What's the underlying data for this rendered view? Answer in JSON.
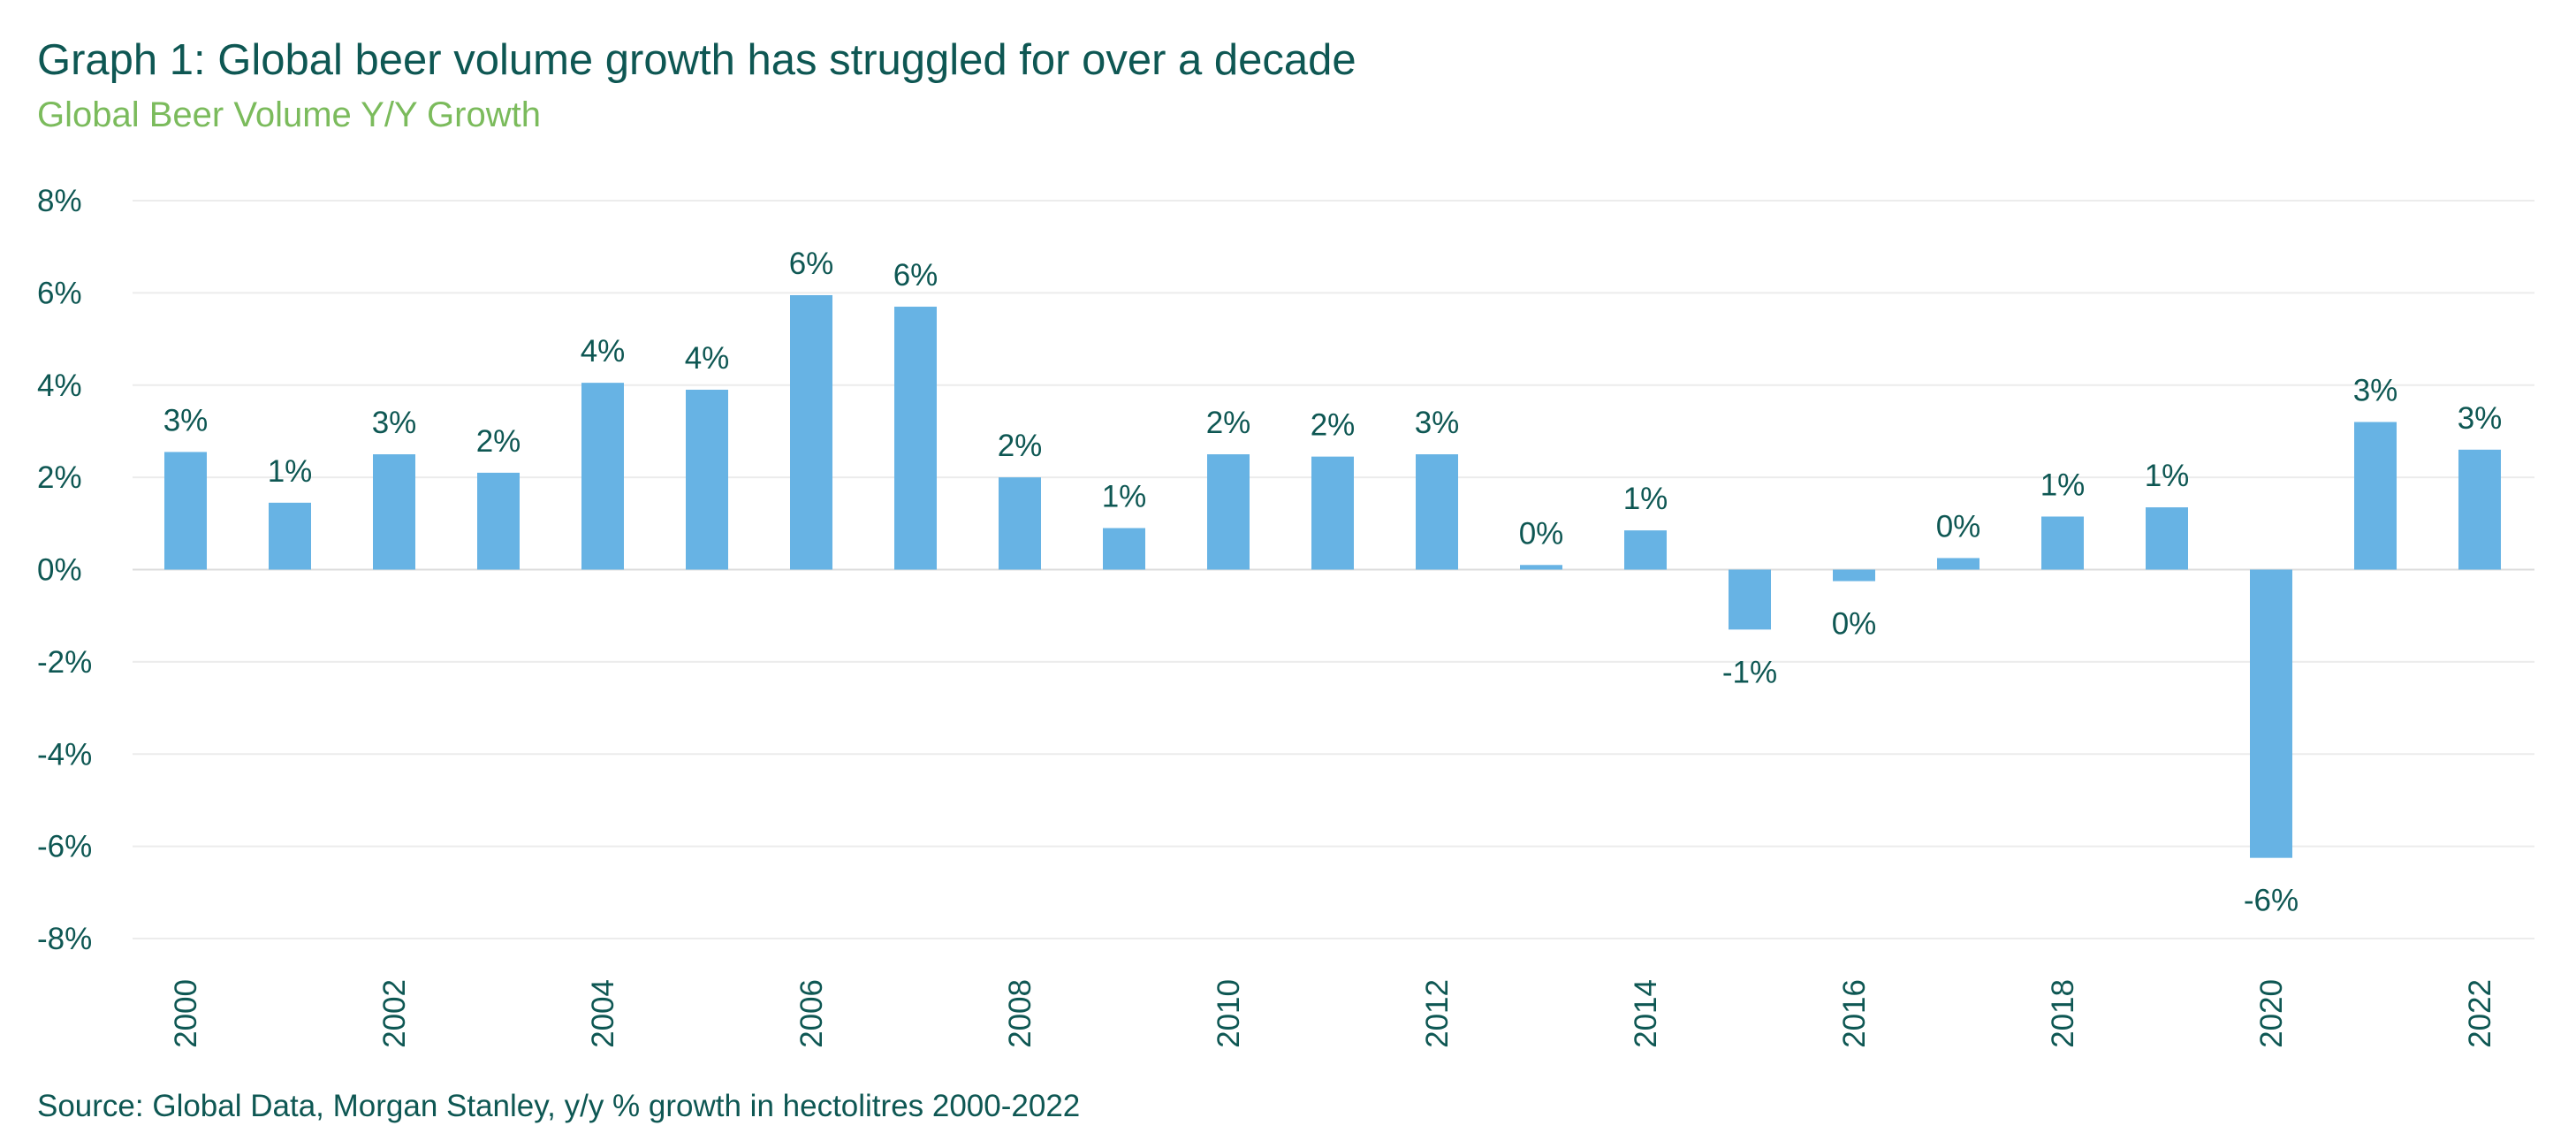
{
  "header": {
    "title": "Graph 1: Global beer volume growth has struggled for over a decade",
    "subtitle": "Global Beer Volume Y/Y Growth"
  },
  "footer": {
    "source": "Source: Global Data, Morgan Stanley, y/y % growth in hectolitres 2000-2022"
  },
  "chart_data": {
    "type": "bar",
    "title": "Graph 1: Global beer volume growth has struggled for over a decade",
    "subtitle": "Global Beer Volume Y/Y Growth",
    "xlabel": "",
    "ylabel": "",
    "ylim": [
      -8,
      8
    ],
    "y_ticks": [
      8,
      6,
      4,
      2,
      0,
      -2,
      -4,
      -6,
      -8
    ],
    "y_tick_labels": [
      "8%",
      "6%",
      "4%",
      "2%",
      "0%",
      "-2%",
      "-4%",
      "-6%",
      "-8%"
    ],
    "categories": [
      "2000",
      "2001",
      "2002",
      "2003",
      "2004",
      "2005",
      "2006",
      "2007",
      "2008",
      "2009",
      "2010",
      "2011",
      "2012",
      "2013",
      "2014",
      "2015",
      "2016",
      "2017",
      "2018",
      "2019",
      "2020",
      "2021",
      "2022"
    ],
    "x_tick_labels": [
      "2000",
      "",
      "2002",
      "",
      "2004",
      "",
      "2006",
      "",
      "2008",
      "",
      "2010",
      "",
      "2012",
      "",
      "2014",
      "",
      "2016",
      "",
      "2018",
      "",
      "2020",
      "",
      "2022"
    ],
    "values": [
      2.55,
      1.45,
      2.5,
      2.1,
      4.05,
      3.9,
      5.95,
      5.7,
      2.0,
      0.9,
      2.5,
      2.45,
      2.5,
      0.1,
      0.85,
      -1.3,
      -0.25,
      0.25,
      1.15,
      1.35,
      -6.25,
      3.2,
      2.6
    ],
    "data_labels": [
      "3%",
      "1%",
      "3%",
      "2%",
      "4%",
      "4%",
      "6%",
      "6%",
      "2%",
      "1%",
      "2%",
      "2%",
      "3%",
      "0%",
      "1%",
      "-1%",
      "0%",
      "0%",
      "1%",
      "1%",
      "-6%",
      "3%",
      "3%"
    ],
    "grid": true,
    "legend": "none",
    "colors": {
      "bar": "#67b3e4",
      "title": "#0e5753",
      "subtitle": "#7bbb5c",
      "text": "#0e5753",
      "grid": "#ececec"
    }
  }
}
